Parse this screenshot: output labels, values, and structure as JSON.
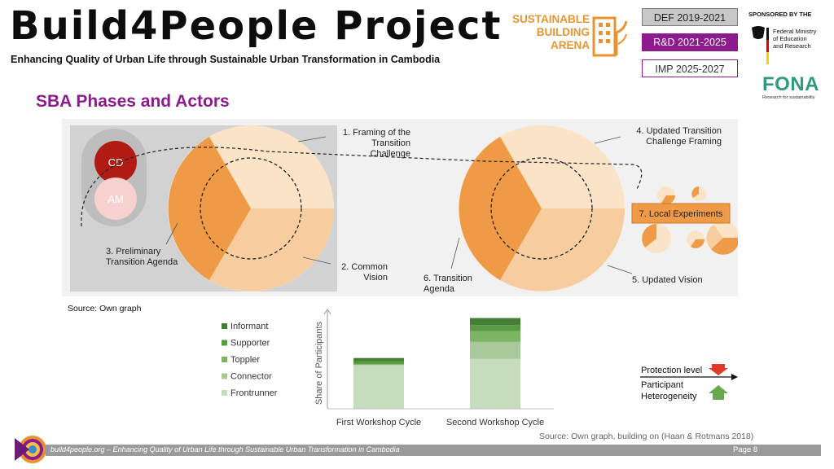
{
  "header": {
    "title": "Build4People Project",
    "subtitle": "Enhancing Quality of Urban Life through Sustainable Urban Transformation in Cambodia"
  },
  "logo": {
    "line1": "SUSTAINABLE",
    "line2": "BUILDING",
    "line3": "ARENA",
    "color": "#e8942e"
  },
  "phases": {
    "def": "DEF 2019-2021",
    "rd": "R&D 2021-2025",
    "imp": "IMP 2025-2027"
  },
  "sponsor": {
    "label": "SPONSORED BY THE",
    "ministry_line1": "Federal Ministry",
    "ministry_line2": "of Education",
    "ministry_line3": "and Research",
    "fona": "FONA",
    "fona_sub": "Research for sustainability"
  },
  "section_title": "SBA Phases and Actors",
  "diagram": {
    "actors": [
      "CD",
      "AM"
    ],
    "step1_a": "1. Framing of the",
    "step1_b": "Transition Challenge",
    "step2_a": "2. Common",
    "step2_b": "Vision",
    "step3_a": "3. Preliminary",
    "step3_b": "Transition Agenda",
    "step4_a": "4. Updated Transition",
    "step4_b": "Challenge Framing",
    "step5": "5. Updated Vision",
    "step6_a": "6. Transition",
    "step6_b": "Agenda",
    "step7": "7. Local Experiments"
  },
  "source1": "Source: Own graph",
  "chart_data": {
    "type": "bar",
    "stacked": true,
    "categories": [
      "First Workshop Cycle",
      "Second Workshop Cycle"
    ],
    "ylabel": "Share of Participants",
    "series": [
      {
        "name": "Frontrunner",
        "values": [
          57,
          65
        ],
        "color": "#c6dcbc"
      },
      {
        "name": "Connector",
        "values": [
          0,
          22
        ],
        "color": "#a8c99a"
      },
      {
        "name": "Toppler",
        "values": [
          1,
          14
        ],
        "color": "#7bb463"
      },
      {
        "name": "Supporter",
        "values": [
          4,
          8
        ],
        "color": "#5a9a44"
      },
      {
        "name": "Informant",
        "values": [
          4,
          9
        ],
        "color": "#437f33"
      }
    ],
    "legend_order": [
      "Informant",
      "Supporter",
      "Toppler",
      "Connector",
      "Frontrunner"
    ],
    "ylim": [
      0,
      125
    ],
    "legend_position": "left"
  },
  "protection": {
    "level": "Protection level",
    "heterogeneity_a": "Participant",
    "heterogeneity_b": "Heterogeneity"
  },
  "source2": "Source: Own graph, building on (Haan & Rotmans 2018)",
  "footer": {
    "text": "build4people.org –  Enhancing Quality of Urban Life through Sustainable Urban Transformation in Cambodia",
    "page": "Page 8"
  }
}
